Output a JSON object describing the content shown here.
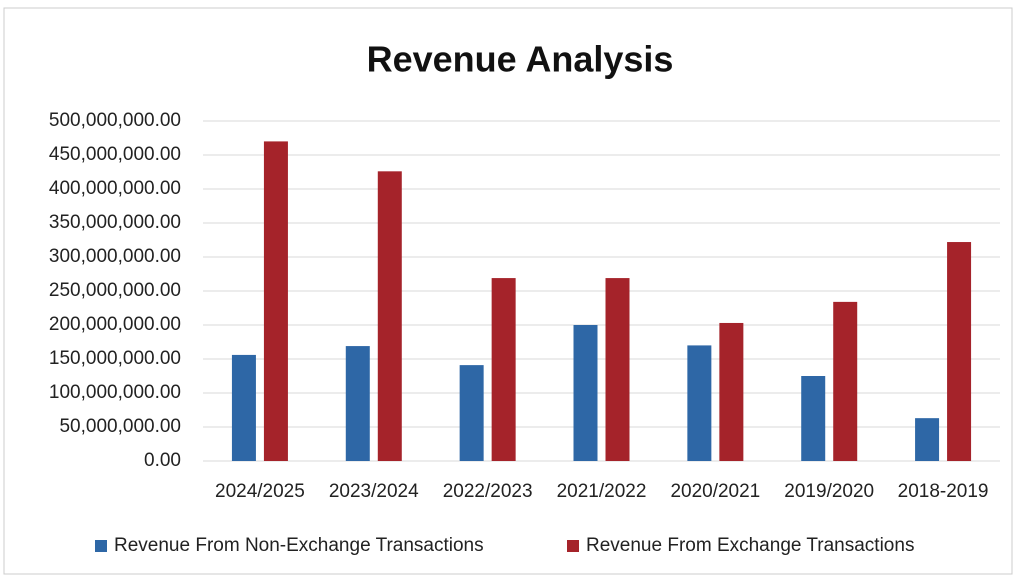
{
  "chart_data": {
    "type": "bar",
    "title": "Revenue Analysis",
    "categories": [
      "2024/2025",
      "2023/2024",
      "2022/2023",
      "2021/2022",
      "2020/2021",
      "2019/2020",
      "2018-2019"
    ],
    "series": [
      {
        "name": "Revenue From Non-Exchange Transactions",
        "color": "#2e67a6",
        "values": [
          156000000,
          169000000,
          141000000,
          200000000,
          170000000,
          125000000,
          63000000
        ]
      },
      {
        "name": "Revenue From Exchange Transactions",
        "color": "#a5232a",
        "values": [
          470000000,
          426000000,
          269000000,
          269000000,
          203000000,
          234000000,
          322000000
        ]
      }
    ],
    "ylim": [
      0,
      500000000
    ],
    "yticks": [
      {
        "value": 0,
        "label": "0.00"
      },
      {
        "value": 50000000,
        "label": "50,000,000.00"
      },
      {
        "value": 100000000,
        "label": "100,000,000.00"
      },
      {
        "value": 150000000,
        "label": "150,000,000.00"
      },
      {
        "value": 200000000,
        "label": "200,000,000.00"
      },
      {
        "value": 250000000,
        "label": "250,000,000.00"
      },
      {
        "value": 300000000,
        "label": "300,000,000.00"
      },
      {
        "value": 350000000,
        "label": "350,000,000.00"
      },
      {
        "value": 400000000,
        "label": "400,000,000.00"
      },
      {
        "value": 450000000,
        "label": "450,000,000.00"
      },
      {
        "value": 500000000,
        "label": "500,000,000.00"
      }
    ],
    "grid": true,
    "legend": "bottom"
  }
}
